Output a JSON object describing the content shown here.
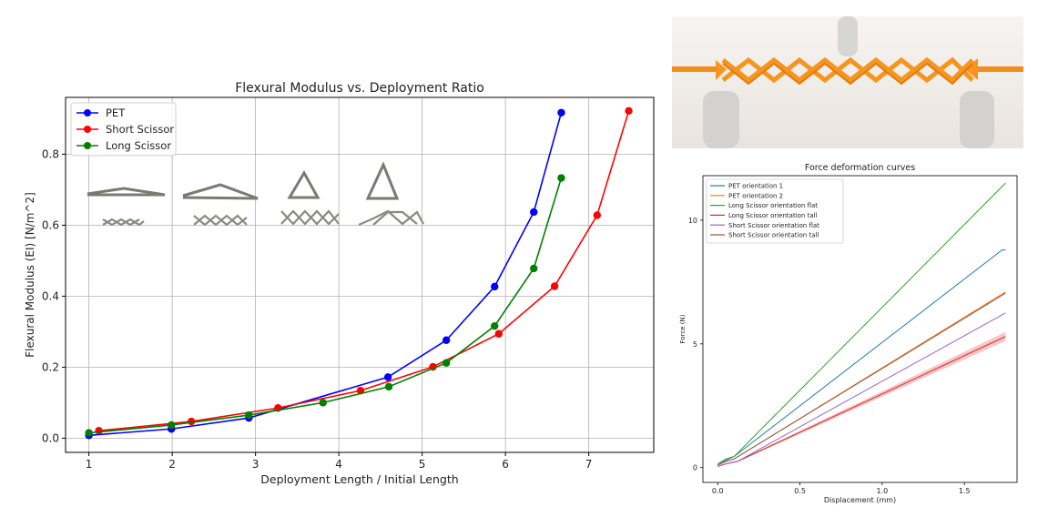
{
  "chart_data": [
    {
      "type": "line",
      "title": "Flexural Modulus vs. Deployment Ratio",
      "xlabel": "Deployment Length / Initial Length",
      "ylabel": "Flexural Modulus (EI) [N/m^2]",
      "xlim": [
        0.72,
        7.78
      ],
      "ylim": [
        -0.04,
        0.96
      ],
      "xticks": [
        1,
        2,
        3,
        4,
        5,
        6,
        7
      ],
      "yticks": [
        0.0,
        0.2,
        0.4,
        0.6,
        0.8
      ],
      "grid": true,
      "legend_position": "top-left",
      "series": [
        {
          "name": "PET",
          "color": "#0000ff",
          "x": [
            1.0,
            1.99,
            2.92,
            4.59,
            5.29,
            5.87,
            6.34,
            6.67
          ],
          "y": [
            0.008,
            0.026,
            0.057,
            0.172,
            0.276,
            0.427,
            0.637,
            0.917
          ]
        },
        {
          "name": "Short Scissor",
          "color": "#ff0000",
          "x": [
            1.12,
            2.23,
            3.27,
            4.26,
            5.13,
            5.92,
            6.59,
            7.1,
            7.48
          ],
          "y": [
            0.021,
            0.047,
            0.085,
            0.134,
            0.201,
            0.294,
            0.428,
            0.628,
            0.922
          ]
        },
        {
          "name": "Long Scissor",
          "color": "#008000",
          "x": [
            1.0,
            1.99,
            2.92,
            3.81,
            4.6,
            5.29,
            5.87,
            6.34,
            6.67
          ],
          "y": [
            0.015,
            0.037,
            0.065,
            0.1,
            0.145,
            0.212,
            0.316,
            0.478,
            0.733
          ]
        }
      ]
    },
    {
      "type": "line",
      "title": "Force deformation curves",
      "xlabel": "Displacement (mm)",
      "ylabel": "Force (N)",
      "xlim": [
        -0.09,
        1.82
      ],
      "ylim": [
        -0.6,
        11.8
      ],
      "xticks": [
        0.0,
        0.5,
        1.0,
        1.5
      ],
      "yticks": [
        0,
        5,
        10
      ],
      "grid": false,
      "legend_position": "top-left",
      "series": [
        {
          "name": "PET orientation 1",
          "color": "#1f77b4",
          "x": [
            0.0,
            0.05,
            0.1,
            1.73,
            1.75
          ],
          "y": [
            0.1,
            0.3,
            0.45,
            8.8,
            8.8
          ]
        },
        {
          "name": "PET orientation 2",
          "color": "#ff7f0e",
          "x": [
            0.0,
            0.05,
            0.1,
            1.75
          ],
          "y": [
            0.1,
            0.25,
            0.35,
            7.1
          ]
        },
        {
          "name": "Long Scissor orientation flat",
          "color": "#2ca02c",
          "x": [
            0.0,
            0.05,
            0.1,
            1.75
          ],
          "y": [
            0.15,
            0.35,
            0.45,
            11.5
          ]
        },
        {
          "name": "Long Scissor orientation tall",
          "color": "#d62728",
          "x": [
            0.0,
            0.05,
            0.12,
            1.75
          ],
          "y": [
            0.05,
            0.15,
            0.25,
            5.3
          ]
        },
        {
          "name": "Short Scissor orientation flat",
          "color": "#9467bd",
          "x": [
            0.0,
            0.05,
            0.12,
            1.75
          ],
          "y": [
            0.05,
            0.15,
            0.25,
            6.25
          ]
        },
        {
          "name": "Short Scissor orientation tall",
          "color": "#8c564b",
          "x": [
            0.0,
            0.05,
            0.1,
            1.75
          ],
          "y": [
            0.1,
            0.25,
            0.35,
            7.05
          ]
        }
      ]
    }
  ]
}
